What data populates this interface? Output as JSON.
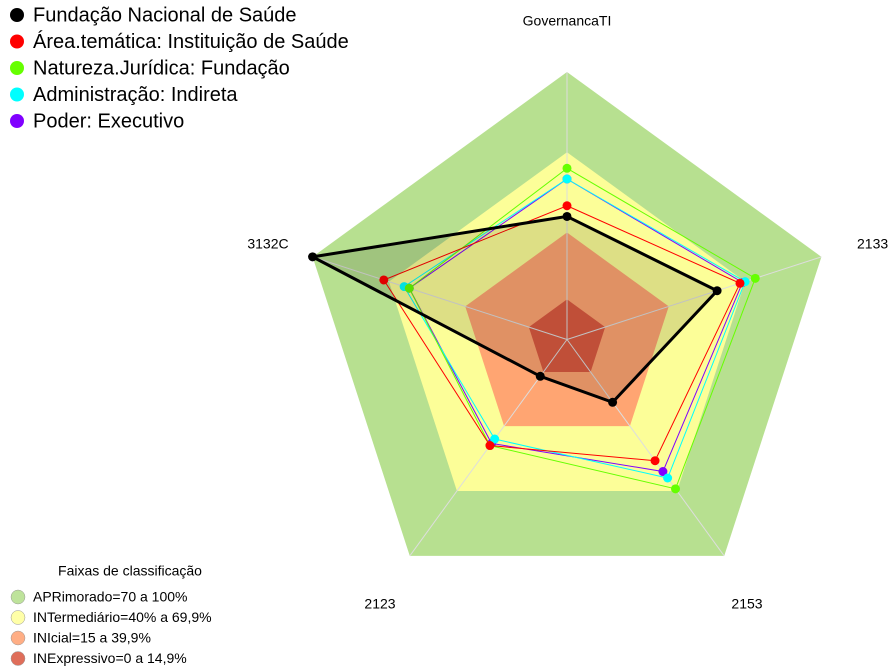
{
  "chart_data": {
    "type": "radar",
    "title": null,
    "categories": [
      "GovernancaTI",
      "2133",
      "2153",
      "2123",
      "3132C"
    ],
    "rlim": [
      0,
      100
    ],
    "series": [
      {
        "name": "Fundação Nacional de Saúde",
        "color": "#000000",
        "values": [
          46,
          59,
          29,
          17,
          100
        ]
      },
      {
        "name": "Área.temática: Instituição de Saúde",
        "color": "#ff0000",
        "values": [
          50,
          68,
          56,
          49,
          72
        ]
      },
      {
        "name": "Natureza.Jurídica: Fundação",
        "color": "#66ff00",
        "values": [
          64,
          74,
          69,
          49,
          62
        ]
      },
      {
        "name": "Administração: Indireta",
        "color": "#00ffff",
        "values": [
          60,
          70,
          64,
          46,
          64
        ]
      },
      {
        "name": "Poder: Executivo",
        "color": "#8000ff",
        "values": [
          60,
          69,
          61,
          48,
          62
        ]
      }
    ],
    "bands_title": "Faixas de classificação",
    "bands": [
      {
        "name": "APRimorado=70 a 100%",
        "from": 70,
        "color": "#b3de8a"
      },
      {
        "name": "INTermediário=40% a 69,9%",
        "from": 40,
        "color": "#ffff99"
      },
      {
        "name": "INIcial=15 a 39,9%",
        "from": 15,
        "color": "#ffa070"
      },
      {
        "name": "INExpressivo=0 a 14,9%",
        "from": 0,
        "color": "#d9553d"
      }
    ]
  }
}
